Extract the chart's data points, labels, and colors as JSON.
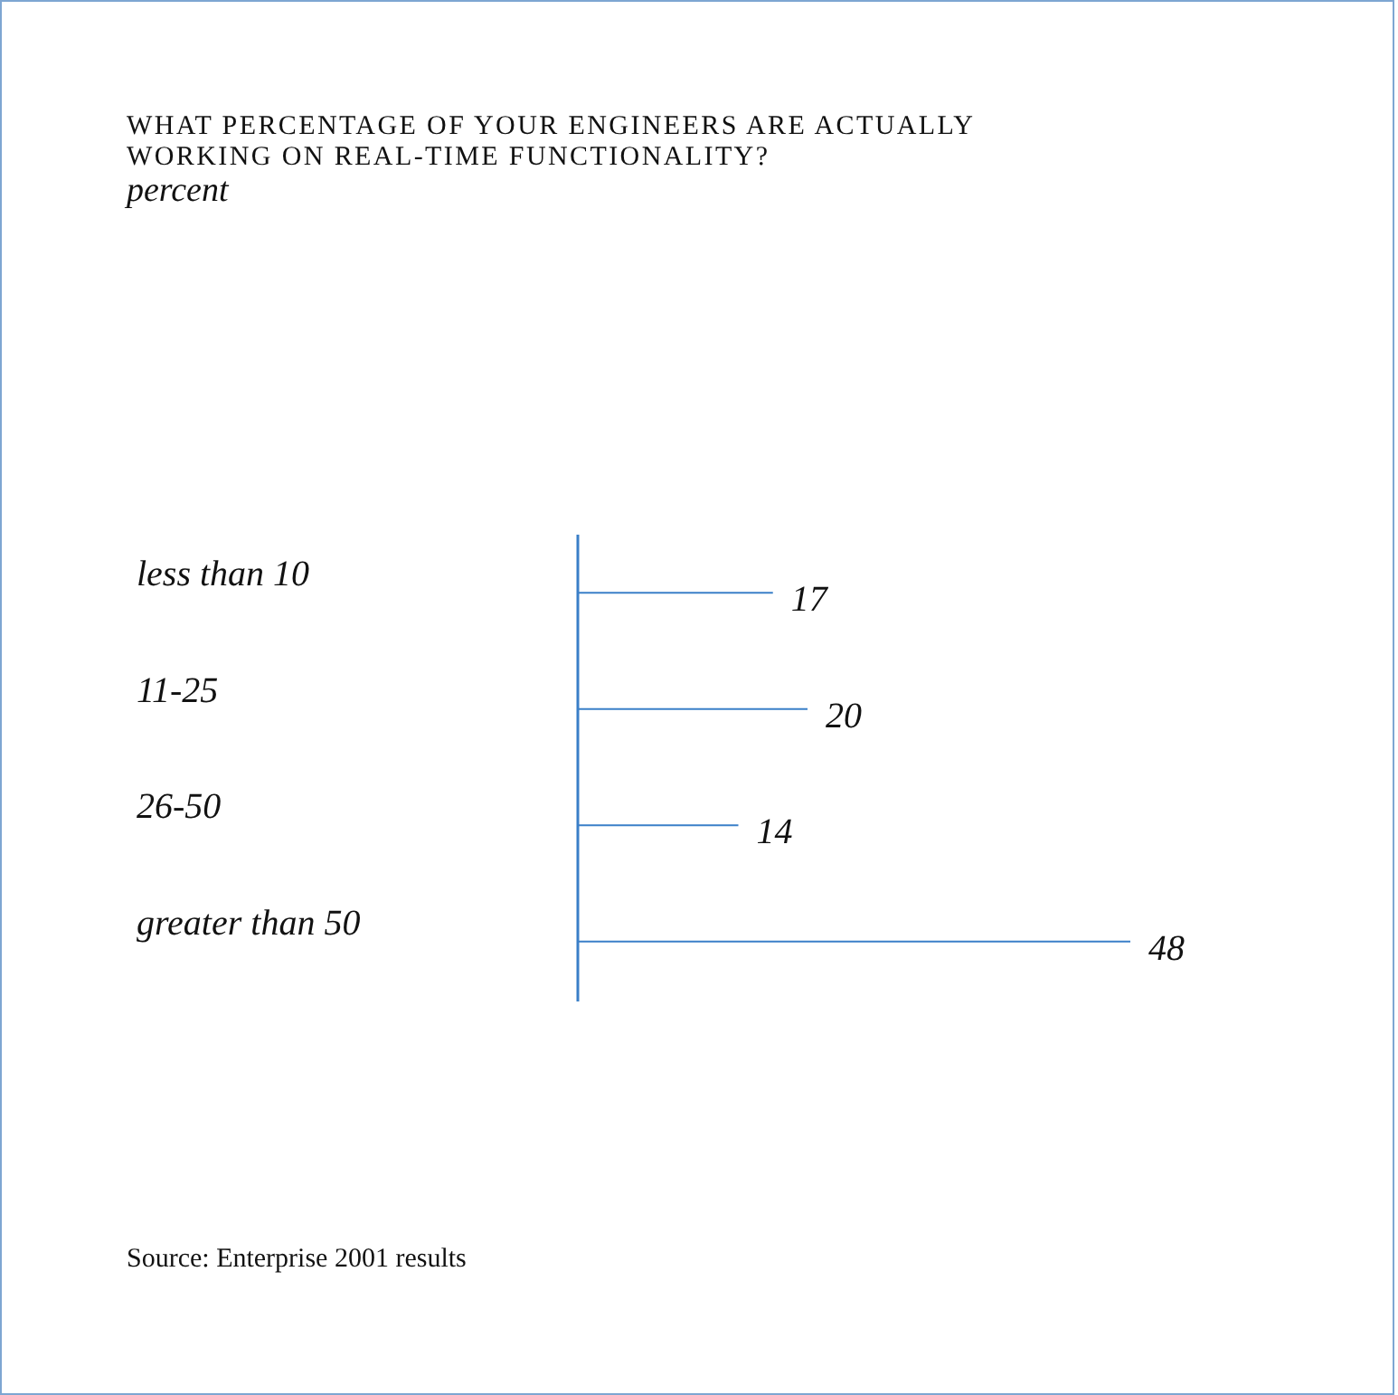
{
  "chart_data": {
    "type": "bar",
    "orientation": "horizontal",
    "title": "WHAT PERCENTAGE OF YOUR ENGINEERS ARE ACTUALLY WORKING ON REAL-TIME FUNCTIONALITY?",
    "subtitle": "percent",
    "categories": [
      "less than 10",
      "11-25",
      "26-50",
      "greater than 50"
    ],
    "values": [
      17,
      20,
      14,
      48
    ],
    "color": "#3a7fc8",
    "data_labels": true,
    "grid": false,
    "annotations": [
      "Source: Enterprise 2001 results"
    ]
  }
}
